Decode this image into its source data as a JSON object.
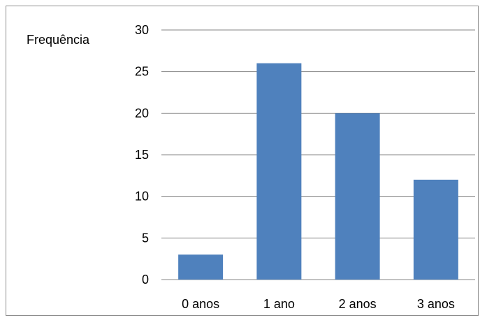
{
  "chart_data": {
    "type": "bar",
    "title": "",
    "xlabel": "",
    "ylabel": "Frequência",
    "categories": [
      "0 anos",
      "1 ano",
      "2 anos",
      "3 anos"
    ],
    "values": [
      3,
      26,
      20,
      12
    ],
    "ylim": [
      0,
      30
    ],
    "yticks": [
      0,
      5,
      10,
      15,
      20,
      25,
      30
    ],
    "grid": true,
    "legend": "none",
    "bar_color": "#4F81BD",
    "grid_color": "#868686"
  }
}
